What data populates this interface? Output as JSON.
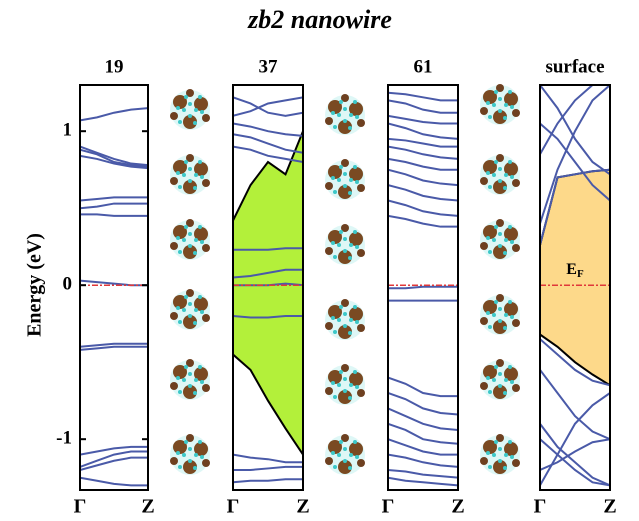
{
  "figure": {
    "title": "zb2 nanowire",
    "ylabel": "Energy (eV)"
  },
  "chart_data": [
    {
      "type": "line",
      "title": "19",
      "categories": [
        "Γ",
        null,
        null,
        null,
        "Z"
      ],
      "ylim": [
        -1.33,
        1.3
      ],
      "yticks": [
        -1,
        0,
        1
      ],
      "hline": 0,
      "hline_color": "#e0383a",
      "color": "#4a5aa8",
      "bands": [
        [
          1.07,
          1.09,
          1.12,
          1.14,
          1.15
        ],
        [
          0.9,
          0.86,
          0.82,
          0.79,
          0.78
        ],
        [
          0.88,
          0.85,
          0.8,
          0.78,
          0.77
        ],
        [
          0.84,
          0.82,
          0.79,
          0.77,
          0.76
        ],
        [
          0.55,
          0.56,
          0.57,
          0.57,
          0.57
        ],
        [
          0.5,
          0.51,
          0.53,
          0.53,
          0.53
        ],
        [
          0.46,
          0.46,
          0.45,
          0.45,
          0.45
        ],
        [
          0.03,
          0.02,
          0.01,
          0.0,
          0.0
        ],
        [
          -0.4,
          -0.39,
          -0.38,
          -0.38,
          -0.38
        ],
        [
          -0.42,
          -0.41,
          -0.4,
          -0.4,
          -0.4
        ],
        [
          -1.1,
          -1.08,
          -1.06,
          -1.05,
          -1.05
        ],
        [
          -1.18,
          -1.14,
          -1.1,
          -1.08,
          -1.08
        ],
        [
          -1.2,
          -1.17,
          -1.14,
          -1.12,
          -1.12
        ],
        [
          -1.25,
          -1.27,
          -1.29,
          -1.3,
          -1.3
        ]
      ]
    },
    {
      "type": "line",
      "title": "37",
      "categories": [
        "Γ",
        null,
        null,
        null,
        "Z"
      ],
      "ylim": [
        -1.33,
        1.3
      ],
      "hline": 0,
      "hline_color": "#e0383a",
      "color": "#4a5aa8",
      "fill": {
        "color": "#b3f03a",
        "lower": [
          -0.45,
          -0.55,
          -0.75,
          -0.93,
          -1.1
        ],
        "upper": [
          0.42,
          0.65,
          0.8,
          0.72,
          1.0
        ]
      },
      "bands": [
        [
          1.22,
          1.18,
          1.12,
          1.1,
          1.12
        ],
        [
          1.1,
          1.13,
          1.18,
          1.2,
          1.22
        ],
        [
          1.05,
          1.03,
          1.0,
          0.98,
          0.97
        ],
        [
          0.98,
          0.96,
          0.92,
          0.88,
          0.86
        ],
        [
          0.9,
          0.88,
          0.84,
          0.82,
          0.8
        ],
        [
          0.23,
          0.23,
          0.23,
          0.24,
          0.24
        ],
        [
          0.05,
          0.06,
          0.08,
          0.1,
          0.1
        ],
        [
          0.0,
          0.0,
          0.0,
          0.01,
          0.0
        ],
        [
          -0.2,
          -0.21,
          -0.21,
          -0.2,
          -0.2
        ],
        [
          -1.1,
          -1.12,
          -1.13,
          -1.15,
          -1.15
        ],
        [
          -1.2,
          -1.2,
          -1.19,
          -1.18,
          -1.18
        ],
        [
          -1.28,
          -1.27,
          -1.27,
          -1.26,
          -1.26
        ]
      ]
    },
    {
      "type": "line",
      "title": "61",
      "categories": [
        "Γ",
        null,
        null,
        null,
        "Z"
      ],
      "ylim": [
        -1.33,
        1.3
      ],
      "hline": 0,
      "hline_color": "#e0383a",
      "color": "#4a5aa8",
      "bands": [
        [
          1.25,
          1.24,
          1.22,
          1.2,
          1.2
        ],
        [
          1.2,
          1.18,
          1.14,
          1.12,
          1.12
        ],
        [
          1.1,
          1.08,
          1.06,
          1.05,
          1.05
        ],
        [
          1.05,
          1.02,
          0.98,
          0.96,
          0.95
        ],
        [
          0.95,
          0.94,
          0.92,
          0.9,
          0.9
        ],
        [
          0.9,
          0.88,
          0.85,
          0.83,
          0.82
        ],
        [
          0.82,
          0.8,
          0.77,
          0.75,
          0.75
        ],
        [
          0.75,
          0.72,
          0.68,
          0.66,
          0.65
        ],
        [
          0.65,
          0.62,
          0.58,
          0.56,
          0.55
        ],
        [
          0.55,
          0.52,
          0.48,
          0.46,
          0.45
        ],
        [
          0.45,
          0.43,
          0.4,
          0.38,
          0.38
        ],
        [
          -0.02,
          -0.02,
          -0.01,
          -0.01,
          -0.01
        ],
        [
          -0.1,
          -0.1,
          -0.1,
          -0.1,
          -0.1
        ],
        [
          -0.6,
          -0.64,
          -0.7,
          -0.72,
          -0.72
        ],
        [
          -0.7,
          -0.74,
          -0.8,
          -0.83,
          -0.84
        ],
        [
          -0.8,
          -0.85,
          -0.9,
          -0.93,
          -0.94
        ],
        [
          -0.9,
          -0.94,
          -1.0,
          -1.02,
          -1.03
        ],
        [
          -1.0,
          -1.04,
          -1.08,
          -1.1,
          -1.1
        ],
        [
          -1.1,
          -1.12,
          -1.15,
          -1.17,
          -1.18
        ],
        [
          -1.2,
          -1.21,
          -1.23,
          -1.24,
          -1.25
        ],
        [
          -1.25,
          -1.27,
          -1.28,
          -1.29,
          -1.3
        ]
      ]
    },
    {
      "type": "line",
      "title": "surface",
      "categories": [
        "Γ",
        null,
        null,
        null,
        "Z"
      ],
      "ylim": [
        -1.33,
        1.3
      ],
      "hline": 0,
      "hline_color": "#e0383a",
      "color": "#4a5aa8",
      "annotation": "E",
      "annotation_sub": "F",
      "annotation_y": 0.1,
      "fill": {
        "color": "#fdd98a",
        "lower": [
          -0.32,
          -0.4,
          -0.5,
          -0.58,
          -0.65
        ],
        "upper": [
          0.26,
          0.7,
          0.72,
          0.74,
          0.75
        ]
      },
      "bands": [
        [
          1.05,
          0.95,
          0.8,
          0.65,
          0.55
        ],
        [
          0.4,
          0.75,
          1.0,
          1.2,
          1.3
        ],
        [
          1.3,
          1.15,
          0.95,
          0.8,
          0.72
        ],
        [
          0.85,
          1.05,
          1.2,
          1.3,
          1.3
        ],
        [
          0.26,
          0.7,
          0.72,
          0.74,
          0.75
        ],
        [
          -0.35,
          -0.45,
          -0.55,
          -0.62,
          -0.65
        ],
        [
          -0.55,
          -0.7,
          -0.85,
          -0.95,
          -1.0
        ],
        [
          -0.9,
          -1.05,
          -1.15,
          -1.25,
          -1.3
        ],
        [
          -1.3,
          -1.1,
          -0.9,
          -0.78,
          -0.7
        ],
        [
          -1.0,
          -1.1,
          -1.2,
          -1.28,
          -1.3
        ],
        [
          -1.2,
          -1.15,
          -1.08,
          -1.02,
          -1.0
        ]
      ]
    }
  ]
}
